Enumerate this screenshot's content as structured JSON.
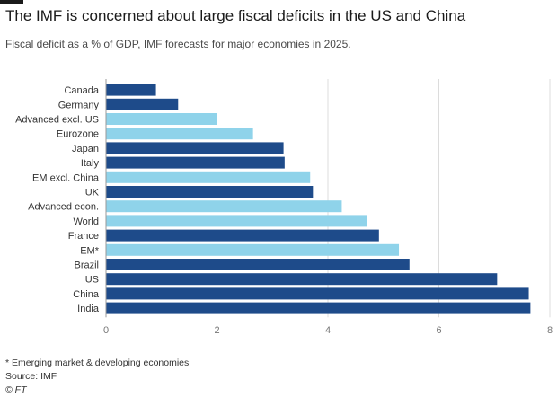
{
  "header": {
    "title": "The IMF is concerned about large fiscal deficits in the US and China",
    "subtitle": "Fiscal deficit as a % of GDP, IMF forecasts for major economies in 2025."
  },
  "footer": {
    "footnote": "* Emerging market & developing economies",
    "source": "Source: IMF",
    "copyright": "© FT"
  },
  "colors": {
    "dark": "#1e4b8a",
    "light": "#8fd3ea",
    "grid": "#dcdcdc",
    "axis_text": "#777777"
  },
  "chart_data": {
    "type": "bar",
    "orientation": "horizontal",
    "title": "The IMF is concerned about large fiscal deficits in the US and China",
    "subtitle": "Fiscal deficit as a % of GDP, IMF forecasts for major economies in 2025.",
    "categories": [
      "Canada",
      "Germany",
      "Advanced excl. US",
      "Eurozone",
      "Japan",
      "Italy",
      "EM excl. China",
      "UK",
      "Advanced econ.",
      "World",
      "France",
      "EM*",
      "Brazil",
      "US",
      "China",
      "India"
    ],
    "values": [
      0.9,
      1.3,
      2.0,
      2.65,
      3.2,
      3.22,
      3.68,
      3.73,
      4.25,
      4.7,
      4.92,
      5.28,
      5.47,
      7.05,
      7.62,
      7.65
    ],
    "bar_colors": [
      "dark",
      "dark",
      "light",
      "light",
      "dark",
      "dark",
      "light",
      "dark",
      "light",
      "light",
      "dark",
      "light",
      "dark",
      "dark",
      "dark",
      "dark"
    ],
    "xlim": [
      0,
      8
    ],
    "xticks": [
      0,
      2,
      4,
      6,
      8
    ],
    "xlabel": "",
    "ylabel": "",
    "grid": true
  }
}
